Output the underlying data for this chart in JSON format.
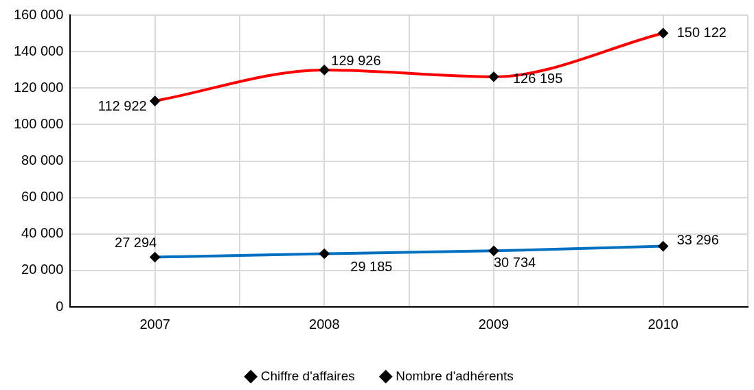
{
  "chart_data": {
    "type": "line",
    "categories": [
      "2007",
      "2008",
      "2009",
      "2010"
    ],
    "series": [
      {
        "name": "Chiffre d'affaires",
        "color": "#ff0000",
        "values": [
          112922,
          129926,
          126195,
          150122
        ],
        "value_labels": [
          "112 922",
          "129 926",
          "126 195",
          "150 122"
        ]
      },
      {
        "name": "Nombre d'adhérents",
        "color": "#0070c0",
        "values": [
          27294,
          29185,
          30734,
          33296
        ],
        "value_labels": [
          "27 294",
          "29 185",
          "30 734",
          "33 296"
        ]
      }
    ],
    "ylim": [
      0,
      160000
    ],
    "yticks": [
      {
        "value": 0,
        "label": "0"
      },
      {
        "value": 20000,
        "label": "20 000"
      },
      {
        "value": 40000,
        "label": "40 000"
      },
      {
        "value": 60000,
        "label": "60 000"
      },
      {
        "value": 80000,
        "label": "80 000"
      },
      {
        "value": 100000,
        "label": "100 000"
      },
      {
        "value": 120000,
        "label": "120 000"
      },
      {
        "value": 140000,
        "label": "140 000"
      },
      {
        "value": 160000,
        "label": "160 000"
      }
    ],
    "grid": true,
    "legend": "bottom",
    "marker": "diamond",
    "line_style": "solid"
  }
}
